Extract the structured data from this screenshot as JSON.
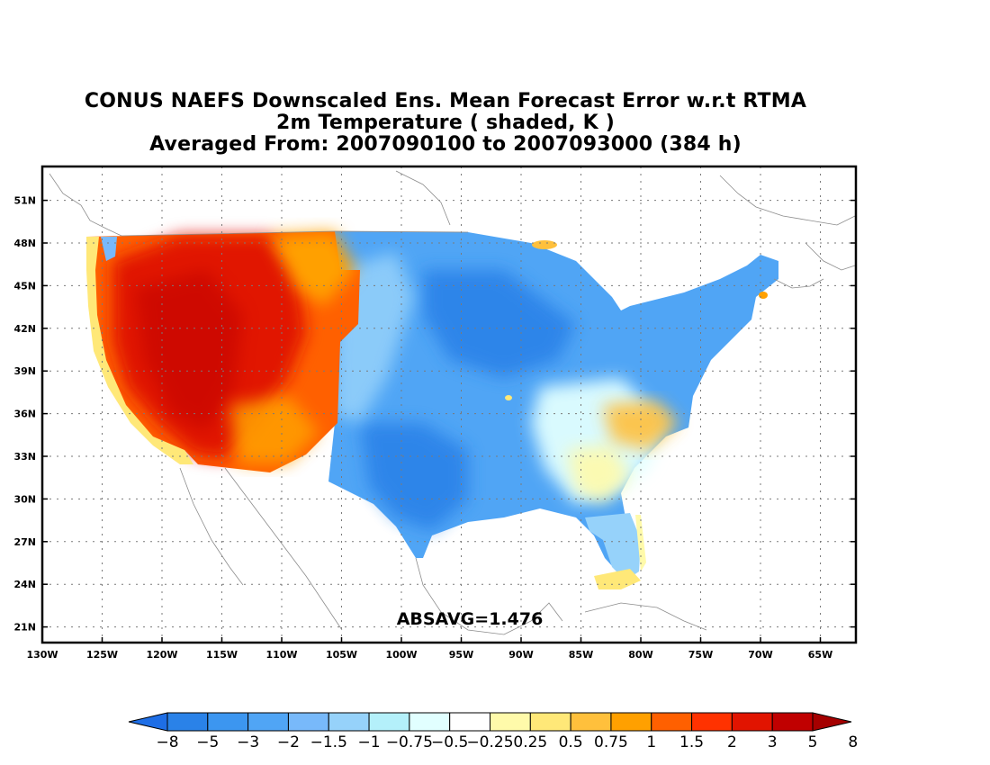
{
  "title": {
    "line1": "CONUS NAEFS Downscaled Ens. Mean Forecast Error w.r.t RTMA",
    "line2": "2m Temperature ( shaded, K )",
    "line3": "Averaged From: 2007090100 to 2007093000 (384 h)"
  },
  "map": {
    "lon_range": [
      -130,
      -81
    ],
    "lat_range": [
      20,
      53
    ],
    "lon_ticks": [
      {
        "lon": -130,
        "label": "130W"
      },
      {
        "lon": -125,
        "label": "125W"
      },
      {
        "lon": -120,
        "label": "120W"
      },
      {
        "lon": -115,
        "label": "115W"
      },
      {
        "lon": -110,
        "label": "110W"
      },
      {
        "lon": -105,
        "label": "105W"
      },
      {
        "lon": -100,
        "label": "100W"
      },
      {
        "lon": -95,
        "label": "95W"
      },
      {
        "lon": -90,
        "label": "90W"
      },
      {
        "lon": -85,
        "label": "85W"
      },
      {
        "lon": -80,
        "label": "80W"
      },
      {
        "lon": -75,
        "label": "75W"
      },
      {
        "lon": -70,
        "label": "70W"
      },
      {
        "lon": -65,
        "label": "65W"
      }
    ],
    "lat_ticks": [
      {
        "lat": 21,
        "label": "21N"
      },
      {
        "lat": 24,
        "label": "24N"
      },
      {
        "lat": 27,
        "label": "27N"
      },
      {
        "lat": 30,
        "label": "30N"
      },
      {
        "lat": 33,
        "label": "33N"
      },
      {
        "lat": 36,
        "label": "36N"
      },
      {
        "lat": 39,
        "label": "39N"
      },
      {
        "lat": 42,
        "label": "42N"
      },
      {
        "lat": 45,
        "label": "45N"
      },
      {
        "lat": 48,
        "label": "48N"
      },
      {
        "lat": 51,
        "label": "51N"
      }
    ],
    "annotation": "ABSAVG=1.476"
  },
  "colorbar": {
    "colors": [
      "#1e6ee6",
      "#2a82e8",
      "#3c96f0",
      "#50a5f5",
      "#78b9fa",
      "#96d2fa",
      "#b4f0fa",
      "#e1ffff",
      "#ffffff",
      "#fffaaa",
      "#ffe878",
      "#ffc03c",
      "#ffa000",
      "#ff6000",
      "#ff3200",
      "#e11400",
      "#c00000",
      "#a50000"
    ],
    "labels": [
      "−8",
      "−5",
      "−3",
      "−2",
      "−1.5",
      "−1",
      "−0.75",
      "−0.5",
      "−0.25",
      "0.25",
      "0.5",
      "0.75",
      "1",
      "1.5",
      "2",
      "3",
      "5",
      "8"
    ]
  }
}
